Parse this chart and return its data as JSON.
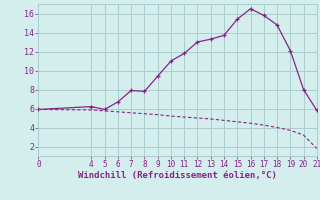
{
  "title": "",
  "xlabel": "Windchill (Refroidissement éolien,°C)",
  "bg_color": "#d4eeee",
  "grid_color": "#aacccc",
  "line_color": "#882288",
  "curve1_x": [
    0,
    4,
    5,
    6,
    7,
    8,
    9,
    10,
    11,
    12,
    13,
    14,
    15,
    16,
    17,
    18,
    19,
    20,
    21
  ],
  "curve1_y": [
    5.9,
    6.2,
    5.9,
    6.7,
    7.9,
    7.8,
    9.4,
    11.0,
    11.8,
    13.0,
    13.3,
    13.7,
    15.4,
    16.5,
    15.8,
    14.8,
    12.1,
    8.0,
    5.8
  ],
  "curve2_x": [
    0,
    4,
    5,
    6,
    7,
    8,
    9,
    10,
    11,
    12,
    13,
    14,
    15,
    16,
    17,
    18,
    19,
    20,
    21
  ],
  "curve2_y": [
    5.9,
    5.85,
    5.75,
    5.65,
    5.55,
    5.45,
    5.35,
    5.2,
    5.1,
    5.0,
    4.9,
    4.75,
    4.6,
    4.45,
    4.25,
    4.0,
    3.7,
    3.2,
    1.8
  ],
  "xlim": [
    0,
    21
  ],
  "ylim": [
    1,
    17
  ],
  "yticks": [
    2,
    4,
    6,
    8,
    10,
    12,
    14,
    16
  ],
  "xticks": [
    0,
    4,
    5,
    6,
    7,
    8,
    9,
    10,
    11,
    12,
    13,
    14,
    15,
    16,
    17,
    18,
    19,
    20,
    21
  ]
}
